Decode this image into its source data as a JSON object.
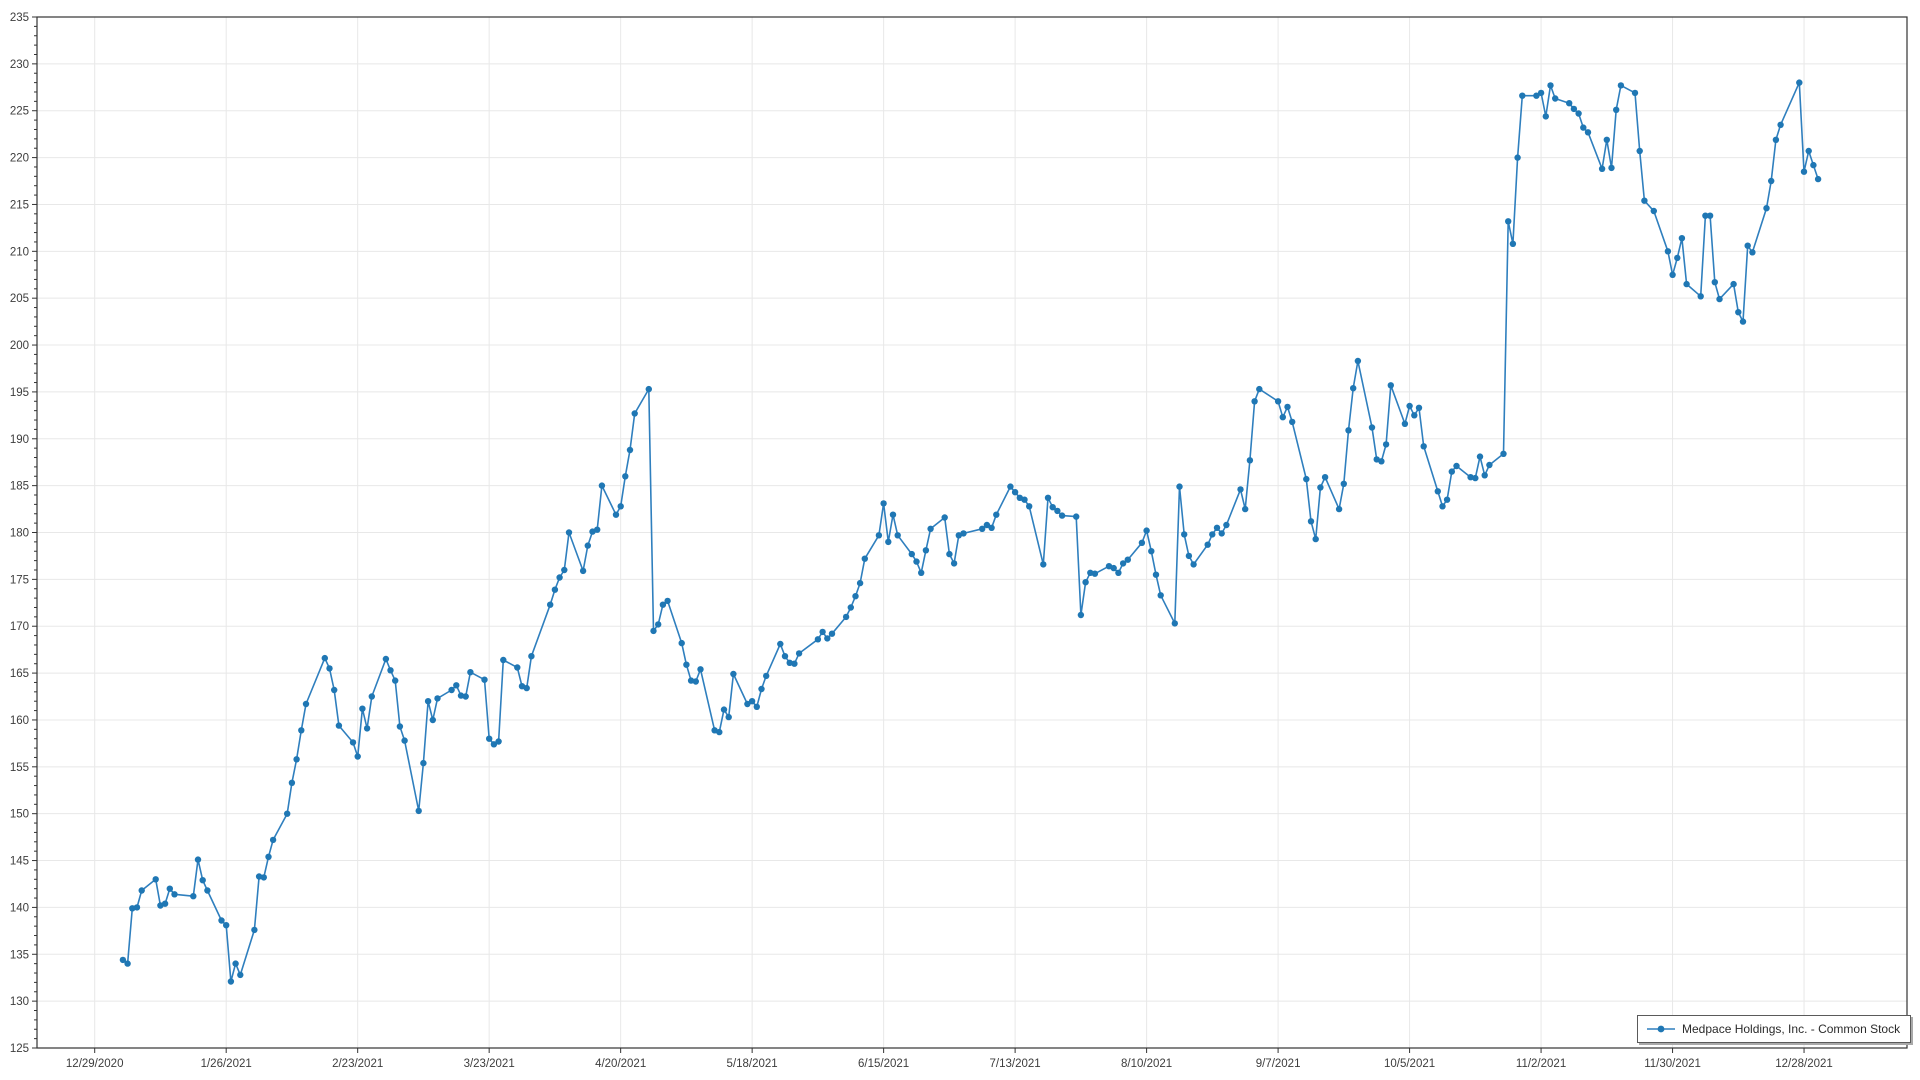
{
  "legend": {
    "label": "Medpace Holdings, Inc. - Common Stock"
  },
  "chart_data": {
    "type": "line",
    "title": "",
    "xlabel": "",
    "ylabel": "",
    "ylim": [
      125,
      235
    ],
    "y_tick_step": 5,
    "y_minor_tick_step": 1,
    "grid": true,
    "legend_position": "bottom-right",
    "x_axis_start": "2020-12-29",
    "x_tick_interval_days": 28,
    "x_tick_labels": [
      "12/29/2020",
      "1/26/2021",
      "2/23/2021",
      "3/23/2021",
      "4/20/2021",
      "5/18/2021",
      "6/15/2021",
      "7/13/2021",
      "8/10/2021",
      "9/7/2021",
      "10/5/2021",
      "11/2/2021",
      "11/30/2021",
      "12/28/2021"
    ],
    "colors": {
      "line": "#2f7fbe",
      "marker": "#1f77b4",
      "grid": "#e8e8e8",
      "axis": "#333333",
      "label": "#3d3d3d"
    },
    "series": [
      {
        "name": "Medpace Holdings, Inc. - Common Stock",
        "points": [
          [
            "2021-01-04",
            134.4
          ],
          [
            "2021-01-05",
            134.0
          ],
          [
            "2021-01-06",
            139.9
          ],
          [
            "2021-01-07",
            140.0
          ],
          [
            "2021-01-08",
            141.8
          ],
          [
            "2021-01-11",
            143.0
          ],
          [
            "2021-01-12",
            140.2
          ],
          [
            "2021-01-13",
            140.4
          ],
          [
            "2021-01-14",
            142.0
          ],
          [
            "2021-01-15",
            141.4
          ],
          [
            "2021-01-19",
            141.2
          ],
          [
            "2021-01-20",
            145.1
          ],
          [
            "2021-01-21",
            142.9
          ],
          [
            "2021-01-22",
            141.8
          ],
          [
            "2021-01-25",
            138.6
          ],
          [
            "2021-01-26",
            138.1
          ],
          [
            "2021-01-27",
            132.1
          ],
          [
            "2021-01-28",
            134.0
          ],
          [
            "2021-01-29",
            132.8
          ],
          [
            "2021-02-01",
            137.6
          ],
          [
            "2021-02-02",
            143.3
          ],
          [
            "2021-02-03",
            143.2
          ],
          [
            "2021-02-04",
            145.4
          ],
          [
            "2021-02-05",
            147.2
          ],
          [
            "2021-02-08",
            150.0
          ],
          [
            "2021-02-09",
            153.3
          ],
          [
            "2021-02-10",
            155.8
          ],
          [
            "2021-02-11",
            158.9
          ],
          [
            "2021-02-12",
            161.7
          ],
          [
            "2021-02-16",
            166.6
          ],
          [
            "2021-02-17",
            165.5
          ],
          [
            "2021-02-18",
            163.2
          ],
          [
            "2021-02-19",
            159.4
          ],
          [
            "2021-02-22",
            157.6
          ],
          [
            "2021-02-23",
            156.1
          ],
          [
            "2021-02-24",
            161.2
          ],
          [
            "2021-02-25",
            159.1
          ],
          [
            "2021-02-26",
            162.5
          ],
          [
            "2021-03-01",
            166.5
          ],
          [
            "2021-03-02",
            165.3
          ],
          [
            "2021-03-03",
            164.2
          ],
          [
            "2021-03-04",
            159.3
          ],
          [
            "2021-03-05",
            157.8
          ],
          [
            "2021-03-08",
            150.3
          ],
          [
            "2021-03-09",
            155.4
          ],
          [
            "2021-03-10",
            162.0
          ],
          [
            "2021-03-11",
            160.0
          ],
          [
            "2021-03-12",
            162.3
          ],
          [
            "2021-03-15",
            163.2
          ],
          [
            "2021-03-16",
            163.7
          ],
          [
            "2021-03-17",
            162.6
          ],
          [
            "2021-03-18",
            162.5
          ],
          [
            "2021-03-19",
            165.1
          ],
          [
            "2021-03-22",
            164.3
          ],
          [
            "2021-03-23",
            158.0
          ],
          [
            "2021-03-24",
            157.4
          ],
          [
            "2021-03-25",
            157.7
          ],
          [
            "2021-03-26",
            166.4
          ],
          [
            "2021-03-29",
            165.6
          ],
          [
            "2021-03-30",
            163.6
          ],
          [
            "2021-03-31",
            163.4
          ],
          [
            "2021-04-01",
            166.8
          ],
          [
            "2021-04-05",
            172.3
          ],
          [
            "2021-04-06",
            173.9
          ],
          [
            "2021-04-07",
            175.2
          ],
          [
            "2021-04-08",
            176.0
          ],
          [
            "2021-04-09",
            180.0
          ],
          [
            "2021-04-12",
            175.9
          ],
          [
            "2021-04-13",
            178.6
          ],
          [
            "2021-04-14",
            180.1
          ],
          [
            "2021-04-15",
            180.3
          ],
          [
            "2021-04-16",
            185.0
          ],
          [
            "2021-04-19",
            181.9
          ],
          [
            "2021-04-20",
            182.8
          ],
          [
            "2021-04-21",
            186.0
          ],
          [
            "2021-04-22",
            188.8
          ],
          [
            "2021-04-23",
            192.7
          ],
          [
            "2021-04-26",
            195.3
          ],
          [
            "2021-04-27",
            169.5
          ],
          [
            "2021-04-28",
            170.2
          ],
          [
            "2021-04-29",
            172.3
          ],
          [
            "2021-04-30",
            172.7
          ],
          [
            "2021-05-03",
            168.2
          ],
          [
            "2021-05-04",
            165.9
          ],
          [
            "2021-05-05",
            164.2
          ],
          [
            "2021-05-06",
            164.1
          ],
          [
            "2021-05-07",
            165.4
          ],
          [
            "2021-05-10",
            158.9
          ],
          [
            "2021-05-11",
            158.7
          ],
          [
            "2021-05-12",
            161.1
          ],
          [
            "2021-05-13",
            160.3
          ],
          [
            "2021-05-14",
            164.9
          ],
          [
            "2021-05-17",
            161.7
          ],
          [
            "2021-05-18",
            162.0
          ],
          [
            "2021-05-19",
            161.4
          ],
          [
            "2021-05-20",
            163.3
          ],
          [
            "2021-05-21",
            164.7
          ],
          [
            "2021-05-24",
            168.1
          ],
          [
            "2021-05-25",
            166.8
          ],
          [
            "2021-05-26",
            166.1
          ],
          [
            "2021-05-27",
            166.0
          ],
          [
            "2021-05-28",
            167.1
          ],
          [
            "2021-06-01",
            168.6
          ],
          [
            "2021-06-02",
            169.4
          ],
          [
            "2021-06-03",
            168.7
          ],
          [
            "2021-06-04",
            169.2
          ],
          [
            "2021-06-07",
            171.0
          ],
          [
            "2021-06-08",
            172.0
          ],
          [
            "2021-06-09",
            173.2
          ],
          [
            "2021-06-10",
            174.6
          ],
          [
            "2021-06-11",
            177.2
          ],
          [
            "2021-06-14",
            179.7
          ],
          [
            "2021-06-15",
            183.1
          ],
          [
            "2021-06-16",
            179.0
          ],
          [
            "2021-06-17",
            181.9
          ],
          [
            "2021-06-18",
            179.7
          ],
          [
            "2021-06-21",
            177.7
          ],
          [
            "2021-06-22",
            176.9
          ],
          [
            "2021-06-23",
            175.7
          ],
          [
            "2021-06-24",
            178.1
          ],
          [
            "2021-06-25",
            180.4
          ],
          [
            "2021-06-28",
            181.6
          ],
          [
            "2021-06-29",
            177.7
          ],
          [
            "2021-06-30",
            176.7
          ],
          [
            "2021-07-01",
            179.7
          ],
          [
            "2021-07-02",
            179.9
          ],
          [
            "2021-07-06",
            180.4
          ],
          [
            "2021-07-07",
            180.8
          ],
          [
            "2021-07-08",
            180.5
          ],
          [
            "2021-07-09",
            181.9
          ],
          [
            "2021-07-12",
            184.9
          ],
          [
            "2021-07-13",
            184.3
          ],
          [
            "2021-07-14",
            183.7
          ],
          [
            "2021-07-15",
            183.5
          ],
          [
            "2021-07-16",
            182.8
          ],
          [
            "2021-07-19",
            176.6
          ],
          [
            "2021-07-20",
            183.7
          ],
          [
            "2021-07-21",
            182.7
          ],
          [
            "2021-07-22",
            182.3
          ],
          [
            "2021-07-23",
            181.8
          ],
          [
            "2021-07-26",
            181.7
          ],
          [
            "2021-07-27",
            171.2
          ],
          [
            "2021-07-28",
            174.7
          ],
          [
            "2021-07-29",
            175.7
          ],
          [
            "2021-07-30",
            175.6
          ],
          [
            "2021-08-02",
            176.4
          ],
          [
            "2021-08-03",
            176.2
          ],
          [
            "2021-08-04",
            175.7
          ],
          [
            "2021-08-05",
            176.7
          ],
          [
            "2021-08-06",
            177.1
          ],
          [
            "2021-08-09",
            178.9
          ],
          [
            "2021-08-10",
            180.2
          ],
          [
            "2021-08-11",
            178.0
          ],
          [
            "2021-08-12",
            175.5
          ],
          [
            "2021-08-13",
            173.3
          ],
          [
            "2021-08-16",
            170.3
          ],
          [
            "2021-08-17",
            184.9
          ],
          [
            "2021-08-18",
            179.8
          ],
          [
            "2021-08-19",
            177.5
          ],
          [
            "2021-08-20",
            176.6
          ],
          [
            "2021-08-23",
            178.7
          ],
          [
            "2021-08-24",
            179.8
          ],
          [
            "2021-08-25",
            180.5
          ],
          [
            "2021-08-26",
            179.9
          ],
          [
            "2021-08-27",
            180.8
          ],
          [
            "2021-08-30",
            184.6
          ],
          [
            "2021-08-31",
            182.5
          ],
          [
            "2021-09-01",
            187.7
          ],
          [
            "2021-09-02",
            194.0
          ],
          [
            "2021-09-03",
            195.3
          ],
          [
            "2021-09-07",
            194.0
          ],
          [
            "2021-09-08",
            192.3
          ],
          [
            "2021-09-09",
            193.4
          ],
          [
            "2021-09-10",
            191.8
          ],
          [
            "2021-09-13",
            185.7
          ],
          [
            "2021-09-14",
            181.2
          ],
          [
            "2021-09-15",
            179.3
          ],
          [
            "2021-09-16",
            184.8
          ],
          [
            "2021-09-17",
            185.9
          ],
          [
            "2021-09-20",
            182.5
          ],
          [
            "2021-09-21",
            185.2
          ],
          [
            "2021-09-22",
            190.9
          ],
          [
            "2021-09-23",
            195.4
          ],
          [
            "2021-09-24",
            198.3
          ],
          [
            "2021-09-27",
            191.2
          ],
          [
            "2021-09-28",
            187.8
          ],
          [
            "2021-09-29",
            187.6
          ],
          [
            "2021-09-30",
            189.4
          ],
          [
            "2021-10-01",
            195.7
          ],
          [
            "2021-10-04",
            191.6
          ],
          [
            "2021-10-05",
            193.5
          ],
          [
            "2021-10-06",
            192.5
          ],
          [
            "2021-10-07",
            193.3
          ],
          [
            "2021-10-08",
            189.2
          ],
          [
            "2021-10-11",
            184.4
          ],
          [
            "2021-10-12",
            182.8
          ],
          [
            "2021-10-13",
            183.5
          ],
          [
            "2021-10-14",
            186.5
          ],
          [
            "2021-10-15",
            187.1
          ],
          [
            "2021-10-18",
            185.9
          ],
          [
            "2021-10-19",
            185.8
          ],
          [
            "2021-10-20",
            188.1
          ],
          [
            "2021-10-21",
            186.1
          ],
          [
            "2021-10-22",
            187.2
          ],
          [
            "2021-10-25",
            188.4
          ],
          [
            "2021-10-26",
            213.2
          ],
          [
            "2021-10-27",
            210.8
          ],
          [
            "2021-10-28",
            220.0
          ],
          [
            "2021-10-29",
            226.6
          ],
          [
            "2021-11-01",
            226.6
          ],
          [
            "2021-11-02",
            226.9
          ],
          [
            "2021-11-03",
            224.4
          ],
          [
            "2021-11-04",
            227.7
          ],
          [
            "2021-11-05",
            226.3
          ],
          [
            "2021-11-08",
            225.8
          ],
          [
            "2021-11-09",
            225.2
          ],
          [
            "2021-11-10",
            224.7
          ],
          [
            "2021-11-11",
            223.2
          ],
          [
            "2021-11-12",
            222.7
          ],
          [
            "2021-11-15",
            218.8
          ],
          [
            "2021-11-16",
            221.9
          ],
          [
            "2021-11-17",
            218.9
          ],
          [
            "2021-11-18",
            225.1
          ],
          [
            "2021-11-19",
            227.7
          ],
          [
            "2021-11-22",
            226.9
          ],
          [
            "2021-11-23",
            220.7
          ],
          [
            "2021-11-24",
            215.4
          ],
          [
            "2021-11-26",
            214.3
          ],
          [
            "2021-11-29",
            210.0
          ],
          [
            "2021-11-30",
            207.5
          ],
          [
            "2021-12-01",
            209.3
          ],
          [
            "2021-12-02",
            211.4
          ],
          [
            "2021-12-03",
            206.5
          ],
          [
            "2021-12-06",
            205.2
          ],
          [
            "2021-12-07",
            213.8
          ],
          [
            "2021-12-08",
            213.8
          ],
          [
            "2021-12-09",
            206.7
          ],
          [
            "2021-12-10",
            204.9
          ],
          [
            "2021-12-13",
            206.5
          ],
          [
            "2021-12-14",
            203.5
          ],
          [
            "2021-12-15",
            202.5
          ],
          [
            "2021-12-16",
            210.6
          ],
          [
            "2021-12-17",
            209.9
          ],
          [
            "2021-12-20",
            214.6
          ],
          [
            "2021-12-21",
            217.5
          ],
          [
            "2021-12-22",
            221.9
          ],
          [
            "2021-12-23",
            223.5
          ],
          [
            "2021-12-27",
            228.0
          ],
          [
            "2021-12-28",
            218.5
          ],
          [
            "2021-12-29",
            220.7
          ],
          [
            "2021-12-30",
            219.2
          ],
          [
            "2021-12-31",
            217.7
          ]
        ]
      }
    ]
  }
}
